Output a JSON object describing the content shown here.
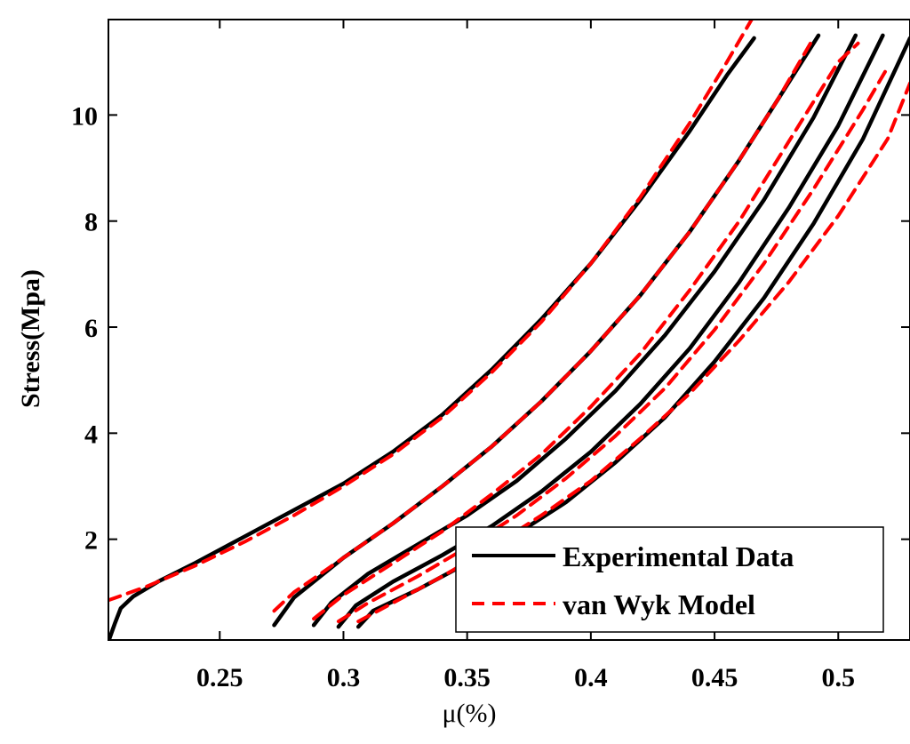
{
  "chart_data": {
    "type": "line",
    "title": "",
    "xlabel": "μ(%)",
    "ylabel": "Stress(Mpa)",
    "xlim": [
      0.205,
      0.529
    ],
    "ylim": [
      0.1,
      11.8
    ],
    "xticks": [
      0.25,
      0.3,
      0.35,
      0.4,
      0.45,
      0.5
    ],
    "xtick_labels": [
      "0.25",
      "0.3",
      "0.35",
      "0.4",
      "0.45",
      "0.5"
    ],
    "yticks": [
      2,
      4,
      6,
      8,
      10
    ],
    "ytick_labels": [
      "2",
      "4",
      "6",
      "8",
      "10"
    ],
    "grid": false,
    "legend_position": "bottom-right",
    "legend": [
      "Experimental Data",
      "van Wyk Model"
    ],
    "colors": {
      "experimental": "#000000",
      "model": "#ff0000"
    },
    "series": [
      {
        "name": "Experimental Data",
        "curve": 1,
        "x": [
          0.2052,
          0.2075,
          0.21,
          0.215,
          0.225,
          0.24,
          0.26,
          0.28,
          0.3,
          0.32,
          0.34,
          0.36,
          0.38,
          0.4,
          0.42,
          0.44,
          0.455,
          0.466
        ],
        "y": [
          0.1,
          0.4,
          0.7,
          0.92,
          1.2,
          1.55,
          2.05,
          2.55,
          3.05,
          3.65,
          4.35,
          5.2,
          6.15,
          7.2,
          8.4,
          9.7,
          10.75,
          11.45
        ]
      },
      {
        "name": "van Wyk Model",
        "curve": 1,
        "x": [
          0.205,
          0.22,
          0.24,
          0.26,
          0.28,
          0.3,
          0.32,
          0.34,
          0.36,
          0.38,
          0.4,
          0.42,
          0.44,
          0.455,
          0.465
        ],
        "y": [
          0.85,
          1.1,
          1.5,
          1.95,
          2.45,
          3.0,
          3.6,
          4.3,
          5.15,
          6.1,
          7.2,
          8.45,
          9.85,
          11.0,
          11.8
        ]
      },
      {
        "name": "Experimental Data",
        "curve": 2,
        "x": [
          0.272,
          0.28,
          0.3,
          0.32,
          0.34,
          0.36,
          0.38,
          0.4,
          0.42,
          0.44,
          0.46,
          0.475,
          0.492
        ],
        "y": [
          0.38,
          0.9,
          1.65,
          2.3,
          3.0,
          3.75,
          4.6,
          5.55,
          6.6,
          7.8,
          9.15,
          10.25,
          11.5
        ]
      },
      {
        "name": "van Wyk Model",
        "curve": 2,
        "x": [
          0.272,
          0.28,
          0.3,
          0.32,
          0.34,
          0.36,
          0.38,
          0.4,
          0.42,
          0.44,
          0.46,
          0.475,
          0.49
        ],
        "y": [
          0.65,
          1.0,
          1.65,
          2.3,
          3.0,
          3.75,
          4.6,
          5.55,
          6.6,
          7.8,
          9.15,
          10.25,
          11.45
        ]
      },
      {
        "name": "Experimental Data",
        "curve": 3,
        "x": [
          0.288,
          0.295,
          0.31,
          0.33,
          0.35,
          0.37,
          0.39,
          0.41,
          0.43,
          0.45,
          0.47,
          0.49,
          0.507
        ],
        "y": [
          0.38,
          0.8,
          1.35,
          1.9,
          2.45,
          3.1,
          3.9,
          4.8,
          5.85,
          7.05,
          8.4,
          9.95,
          11.5
        ]
      },
      {
        "name": "van Wyk Model",
        "curve": 3,
        "x": [
          0.288,
          0.3,
          0.32,
          0.34,
          0.36,
          0.38,
          0.4,
          0.42,
          0.44,
          0.46,
          0.48,
          0.5,
          0.508
        ],
        "y": [
          0.5,
          0.95,
          1.55,
          2.15,
          2.85,
          3.6,
          4.5,
          5.5,
          6.7,
          8.0,
          9.5,
          11.0,
          11.35
        ]
      },
      {
        "name": "Experimental Data",
        "curve": 4,
        "x": [
          0.298,
          0.305,
          0.32,
          0.34,
          0.36,
          0.38,
          0.4,
          0.42,
          0.44,
          0.46,
          0.48,
          0.5,
          0.518
        ],
        "y": [
          0.35,
          0.75,
          1.2,
          1.7,
          2.25,
          2.9,
          3.65,
          4.55,
          5.6,
          6.85,
          8.25,
          9.8,
          11.5
        ]
      },
      {
        "name": "van Wyk Model",
        "curve": 4,
        "x": [
          0.298,
          0.31,
          0.33,
          0.35,
          0.37,
          0.39,
          0.41,
          0.43,
          0.45,
          0.47,
          0.49,
          0.51,
          0.52
        ],
        "y": [
          0.45,
          0.8,
          1.3,
          1.85,
          2.45,
          3.15,
          3.95,
          4.85,
          5.95,
          7.2,
          8.6,
          10.1,
          10.9
        ]
      },
      {
        "name": "Experimental Data",
        "curve": 5,
        "x": [
          0.306,
          0.312,
          0.33,
          0.35,
          0.37,
          0.39,
          0.41,
          0.43,
          0.45,
          0.47,
          0.49,
          0.51,
          0.529
        ],
        "y": [
          0.35,
          0.65,
          1.05,
          1.55,
          2.1,
          2.7,
          3.45,
          4.3,
          5.35,
          6.55,
          7.95,
          9.55,
          11.45
        ]
      },
      {
        "name": "van Wyk Model",
        "curve": 5,
        "x": [
          0.306,
          0.32,
          0.34,
          0.36,
          0.38,
          0.4,
          0.42,
          0.44,
          0.46,
          0.48,
          0.5,
          0.52,
          0.529
        ],
        "y": [
          0.45,
          0.8,
          1.3,
          1.85,
          2.45,
          3.1,
          3.9,
          4.75,
          5.75,
          6.85,
          8.1,
          9.55,
          10.6
        ]
      }
    ]
  }
}
